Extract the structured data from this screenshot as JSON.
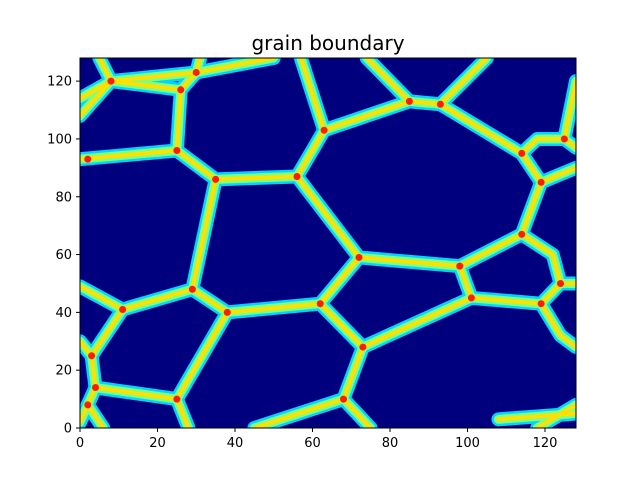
{
  "chart_data": {
    "type": "heatmap",
    "title": "grain boundary",
    "xlabel": "",
    "ylabel": "",
    "xlim": [
      0,
      128
    ],
    "ylim": [
      0,
      128
    ],
    "xticks": [
      0,
      20,
      40,
      60,
      80,
      100,
      120
    ],
    "yticks": [
      0,
      20,
      40,
      60,
      80,
      100,
      120
    ],
    "colormap": "jet",
    "grid": false,
    "colors": {
      "background": "#00007f",
      "boundary_outer": "#00d4ff",
      "boundary_mid": "#7fff7f",
      "boundary_inner": "#ffe000",
      "junction": "#ff1a00"
    },
    "junctions": [
      {
        "id": "j1",
        "x": 8,
        "y": 120
      },
      {
        "id": "j2",
        "x": 30,
        "y": 123
      },
      {
        "id": "j3",
        "x": 26,
        "y": 117
      },
      {
        "id": "j4",
        "x": 63,
        "y": 103
      },
      {
        "id": "j5",
        "x": 85,
        "y": 113
      },
      {
        "id": "j6",
        "x": 93,
        "y": 112
      },
      {
        "id": "j7",
        "x": 2,
        "y": 93
      },
      {
        "id": "j8",
        "x": 25,
        "y": 96
      },
      {
        "id": "j9",
        "x": 35,
        "y": 86
      },
      {
        "id": "j10",
        "x": 56,
        "y": 87
      },
      {
        "id": "j11",
        "x": 72,
        "y": 59
      },
      {
        "id": "j12",
        "x": 114,
        "y": 95
      },
      {
        "id": "j13",
        "x": 125,
        "y": 100
      },
      {
        "id": "j14",
        "x": 119,
        "y": 85
      },
      {
        "id": "j15",
        "x": 114,
        "y": 67
      },
      {
        "id": "j16",
        "x": 98,
        "y": 56
      },
      {
        "id": "j17",
        "x": 101,
        "y": 45
      },
      {
        "id": "j18",
        "x": 119,
        "y": 43
      },
      {
        "id": "j19",
        "x": 124,
        "y": 50
      },
      {
        "id": "j20",
        "x": 29,
        "y": 48
      },
      {
        "id": "j21",
        "x": 11,
        "y": 41
      },
      {
        "id": "j22",
        "x": 38,
        "y": 40
      },
      {
        "id": "j23",
        "x": 62,
        "y": 43
      },
      {
        "id": "j24",
        "x": 73,
        "y": 28
      },
      {
        "id": "j25",
        "x": 3,
        "y": 25
      },
      {
        "id": "j26",
        "x": 4,
        "y": 14
      },
      {
        "id": "j27",
        "x": 25,
        "y": 10
      },
      {
        "id": "j28",
        "x": 68,
        "y": 10
      },
      {
        "id": "j29",
        "x": 2,
        "y": 8
      }
    ],
    "boundaries": [
      [
        [
          0,
          114
        ],
        [
          8,
          120
        ],
        [
          30,
          123
        ],
        [
          50,
          128
        ]
      ],
      [
        [
          8,
          120
        ],
        [
          5,
          128
        ]
      ],
      [
        [
          8,
          120
        ],
        [
          26,
          117
        ]
      ],
      [
        [
          30,
          123
        ],
        [
          26,
          117
        ]
      ],
      [
        [
          30,
          123
        ],
        [
          31,
          128
        ]
      ],
      [
        [
          26,
          117
        ],
        [
          25,
          96
        ]
      ],
      [
        [
          0,
          108
        ],
        [
          8,
          120
        ]
      ],
      [
        [
          0,
          93
        ],
        [
          25,
          96
        ]
      ],
      [
        [
          25,
          96
        ],
        [
          35,
          86
        ]
      ],
      [
        [
          35,
          86
        ],
        [
          56,
          87
        ]
      ],
      [
        [
          56,
          87
        ],
        [
          63,
          103
        ]
      ],
      [
        [
          63,
          103
        ],
        [
          85,
          113
        ]
      ],
      [
        [
          85,
          113
        ],
        [
          93,
          112
        ]
      ],
      [
        [
          85,
          113
        ],
        [
          74,
          128
        ]
      ],
      [
        [
          93,
          112
        ],
        [
          105,
          128
        ]
      ],
      [
        [
          63,
          103
        ],
        [
          57,
          128
        ]
      ],
      [
        [
          93,
          112
        ],
        [
          114,
          95
        ]
      ],
      [
        [
          114,
          95
        ],
        [
          119,
          85
        ]
      ],
      [
        [
          119,
          85
        ],
        [
          128,
          90
        ]
      ],
      [
        [
          114,
          95
        ],
        [
          118,
          100
        ],
        [
          125,
          100
        ],
        [
          128,
          97
        ]
      ],
      [
        [
          125,
          100
        ],
        [
          128,
          120
        ]
      ],
      [
        [
          119,
          85
        ],
        [
          114,
          67
        ]
      ],
      [
        [
          114,
          67
        ],
        [
          98,
          56
        ]
      ],
      [
        [
          98,
          56
        ],
        [
          72,
          59
        ]
      ],
      [
        [
          72,
          59
        ],
        [
          56,
          87
        ]
      ],
      [
        [
          114,
          67
        ],
        [
          122,
          60
        ],
        [
          124,
          50
        ]
      ],
      [
        [
          124,
          50
        ],
        [
          128,
          50
        ]
      ],
      [
        [
          98,
          56
        ],
        [
          101,
          45
        ]
      ],
      [
        [
          101,
          45
        ],
        [
          119,
          43
        ]
      ],
      [
        [
          119,
          43
        ],
        [
          124,
          50
        ]
      ],
      [
        [
          119,
          43
        ],
        [
          124,
          32
        ],
        [
          128,
          28
        ]
      ],
      [
        [
          35,
          86
        ],
        [
          29,
          48
        ]
      ],
      [
        [
          0,
          49
        ],
        [
          11,
          41
        ]
      ],
      [
        [
          11,
          41
        ],
        [
          29,
          48
        ]
      ],
      [
        [
          29,
          48
        ],
        [
          38,
          40
        ]
      ],
      [
        [
          38,
          40
        ],
        [
          62,
          43
        ]
      ],
      [
        [
          62,
          43
        ],
        [
          72,
          59
        ]
      ],
      [
        [
          62,
          43
        ],
        [
          73,
          28
        ]
      ],
      [
        [
          73,
          28
        ],
        [
          101,
          45
        ]
      ],
      [
        [
          73,
          28
        ],
        [
          68,
          10
        ]
      ],
      [
        [
          68,
          10
        ],
        [
          45,
          0
        ]
      ],
      [
        [
          68,
          10
        ],
        [
          75,
          0
        ]
      ],
      [
        [
          38,
          40
        ],
        [
          25,
          10
        ]
      ],
      [
        [
          11,
          41
        ],
        [
          3,
          25
        ]
      ],
      [
        [
          3,
          25
        ],
        [
          0,
          30
        ]
      ],
      [
        [
          3,
          25
        ],
        [
          4,
          14
        ]
      ],
      [
        [
          4,
          14
        ],
        [
          25,
          10
        ]
      ],
      [
        [
          25,
          10
        ],
        [
          28,
          0
        ]
      ],
      [
        [
          4,
          14
        ],
        [
          2,
          8
        ]
      ],
      [
        [
          2,
          8
        ],
        [
          0,
          2
        ]
      ],
      [
        [
          2,
          8
        ],
        [
          6,
          0
        ]
      ],
      [
        [
          118,
          0
        ],
        [
          128,
          8
        ]
      ],
      [
        [
          108,
          3
        ],
        [
          128,
          5
        ]
      ]
    ]
  }
}
